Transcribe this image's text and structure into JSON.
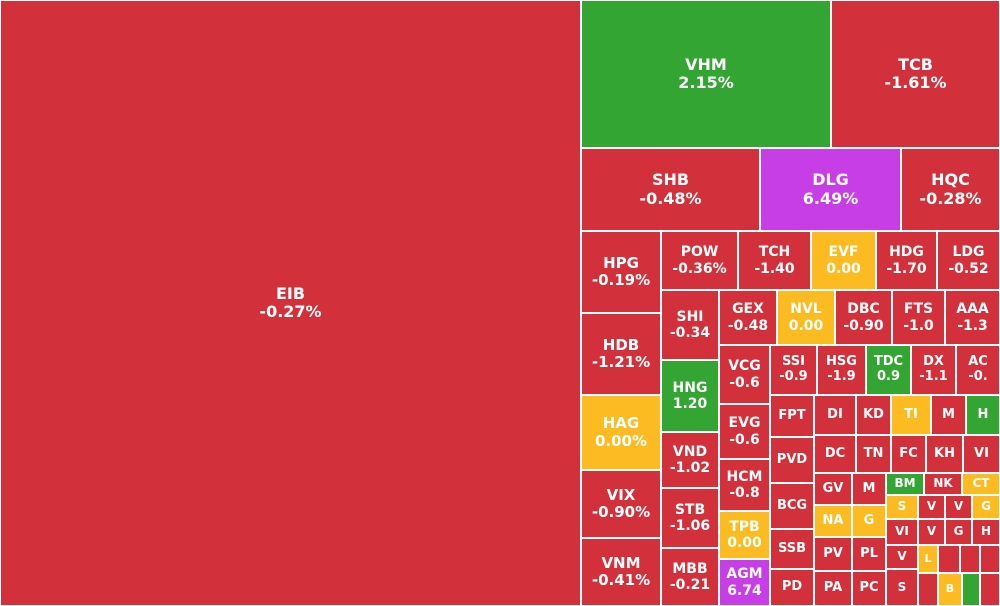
{
  "colors": {
    "down": "#d2303a",
    "up": "#33a532",
    "flat": "#fbbb21",
    "ceiling": "#c83ee6"
  },
  "chart_data": {
    "type": "treemap",
    "items": [
      {
        "ticker": "EIB",
        "change": "-0.27%",
        "status": "down"
      },
      {
        "ticker": "VHM",
        "change": "2.15%",
        "status": "up"
      },
      {
        "ticker": "TCB",
        "change": "-1.61%",
        "status": "down"
      },
      {
        "ticker": "SHB",
        "change": "-0.48%",
        "status": "down"
      },
      {
        "ticker": "DLG",
        "change": "6.49%",
        "status": "ceiling"
      },
      {
        "ticker": "HQC",
        "change": "-0.28%",
        "status": "down"
      },
      {
        "ticker": "HPG",
        "change": "-0.19%",
        "status": "down"
      },
      {
        "ticker": "HDB",
        "change": "-1.21%",
        "status": "down"
      },
      {
        "ticker": "HAG",
        "change": "0.00%",
        "status": "flat"
      },
      {
        "ticker": "VIX",
        "change": "-0.90%",
        "status": "down"
      },
      {
        "ticker": "VNM",
        "change": "-0.41%",
        "status": "down"
      },
      {
        "ticker": "POW",
        "change": "-0.36%",
        "status": "down"
      },
      {
        "ticker": "TCH",
        "change": "-1.40",
        "status": "down"
      },
      {
        "ticker": "EVF",
        "change": "0.00",
        "status": "flat"
      },
      {
        "ticker": "HDG",
        "change": "-1.70",
        "status": "down"
      },
      {
        "ticker": "LDG",
        "change": "-0.52",
        "status": "down"
      },
      {
        "ticker": "SHI",
        "change": "-0.34",
        "status": "down"
      },
      {
        "ticker": "GEX",
        "change": "-0.48",
        "status": "down"
      },
      {
        "ticker": "NVL",
        "change": "0.00",
        "status": "flat"
      },
      {
        "ticker": "DBC",
        "change": "-0.90",
        "status": "down"
      },
      {
        "ticker": "FTS",
        "change": "-1.0",
        "status": "down"
      },
      {
        "ticker": "AAA",
        "change": "-1.3",
        "status": "down"
      },
      {
        "ticker": "HNG",
        "change": "1.20",
        "status": "up"
      },
      {
        "ticker": "VCG",
        "change": "-0.6",
        "status": "down"
      },
      {
        "ticker": "SSI",
        "change": "-0.9",
        "status": "down"
      },
      {
        "ticker": "HSG",
        "change": "-1.9",
        "status": "down"
      },
      {
        "ticker": "TDC",
        "change": "0.9",
        "status": "up"
      },
      {
        "ticker": "DX",
        "change": "-1.1",
        "status": "down"
      },
      {
        "ticker": "AC",
        "change": "-0.",
        "status": "down"
      },
      {
        "ticker": "VND",
        "change": "-1.02",
        "status": "down"
      },
      {
        "ticker": "STB",
        "change": "-1.06",
        "status": "down"
      },
      {
        "ticker": "MBB",
        "change": "-0.21",
        "status": "down"
      },
      {
        "ticker": "EVG",
        "change": "-0.6",
        "status": "down"
      },
      {
        "ticker": "HCM",
        "change": "-0.8",
        "status": "down"
      },
      {
        "ticker": "TPB",
        "change": "0.00",
        "status": "flat"
      },
      {
        "ticker": "AGM",
        "change": "6.74",
        "status": "ceiling"
      },
      {
        "ticker": "FPT",
        "change": "",
        "status": "down"
      },
      {
        "ticker": "PVD",
        "change": "",
        "status": "down"
      },
      {
        "ticker": "BCG",
        "change": "",
        "status": "down"
      },
      {
        "ticker": "SSB",
        "change": "",
        "status": "down"
      },
      {
        "ticker": "PD",
        "change": "",
        "status": "down"
      },
      {
        "ticker": "DI",
        "change": "",
        "status": "down"
      },
      {
        "ticker": "KD",
        "change": "",
        "status": "down"
      },
      {
        "ticker": "TI",
        "change": "",
        "status": "flat"
      },
      {
        "ticker": "M",
        "change": "",
        "status": "down"
      },
      {
        "ticker": "H",
        "change": "",
        "status": "up"
      },
      {
        "ticker": "DC",
        "change": "",
        "status": "down"
      },
      {
        "ticker": "TN",
        "change": "",
        "status": "down"
      },
      {
        "ticker": "FC",
        "change": "",
        "status": "down"
      },
      {
        "ticker": "KH",
        "change": "",
        "status": "down"
      },
      {
        "ticker": "VI",
        "change": "",
        "status": "down"
      },
      {
        "ticker": "GV",
        "change": "",
        "status": "down"
      },
      {
        "ticker": "M",
        "change": "",
        "status": "down"
      },
      {
        "ticker": "BM",
        "change": "",
        "status": "up"
      },
      {
        "ticker": "NK",
        "change": "",
        "status": "down"
      },
      {
        "ticker": "CT",
        "change": "",
        "status": "flat"
      },
      {
        "ticker": "NA",
        "change": "",
        "status": "flat"
      },
      {
        "ticker": "G",
        "change": "",
        "status": "flat"
      },
      {
        "ticker": "S",
        "change": "",
        "status": "flat"
      },
      {
        "ticker": "V",
        "change": "",
        "status": "down"
      },
      {
        "ticker": "V",
        "change": "",
        "status": "down"
      },
      {
        "ticker": "G",
        "change": "",
        "status": "flat"
      },
      {
        "ticker": "VI",
        "change": "",
        "status": "down"
      },
      {
        "ticker": "V",
        "change": "",
        "status": "down"
      },
      {
        "ticker": "G",
        "change": "",
        "status": "down"
      },
      {
        "ticker": "H",
        "change": "",
        "status": "down"
      },
      {
        "ticker": "PV",
        "change": "",
        "status": "down"
      },
      {
        "ticker": "PL",
        "change": "",
        "status": "down"
      },
      {
        "ticker": "V",
        "change": "",
        "status": "down"
      },
      {
        "ticker": "L",
        "change": "",
        "status": "flat"
      },
      {
        "ticker": "",
        "change": "",
        "status": "down"
      },
      {
        "ticker": "",
        "change": "",
        "status": "down"
      },
      {
        "ticker": "",
        "change": "",
        "status": "down"
      },
      {
        "ticker": "PA",
        "change": "",
        "status": "down"
      },
      {
        "ticker": "PC",
        "change": "",
        "status": "down"
      },
      {
        "ticker": "S",
        "change": "",
        "status": "down"
      },
      {
        "ticker": "",
        "change": "",
        "status": "down"
      },
      {
        "ticker": "B",
        "change": "",
        "status": "flat"
      },
      {
        "ticker": "",
        "change": "",
        "status": "up"
      },
      {
        "ticker": "",
        "change": "",
        "status": "down"
      }
    ]
  }
}
